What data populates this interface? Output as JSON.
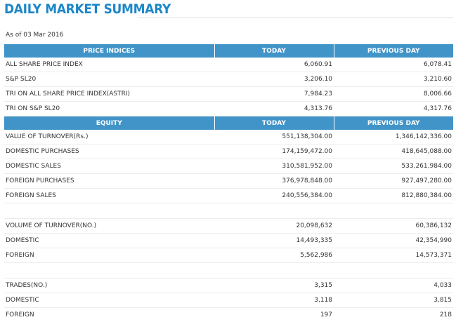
{
  "page": {
    "title": "DAILY MARKET SUMMARY",
    "as_of": "As of 03 Mar 2016"
  },
  "price_indices": {
    "headers": [
      "PRICE INDICES",
      "TODAY",
      "PREVIOUS DAY"
    ],
    "rows": [
      {
        "label": "ALL SHARE PRICE INDEX",
        "today": "6,060.91",
        "previous": "6,078.41"
      },
      {
        "label": "S&P SL20",
        "today": "3,206.10",
        "previous": "3,210.60"
      },
      {
        "label": "TRI ON ALL SHARE PRICE INDEX(ASTRI)",
        "today": "7,984.23",
        "previous": "8,006.66"
      },
      {
        "label": "TRI ON S&P SL20",
        "today": "4,313.76",
        "previous": "4,317.76"
      }
    ]
  },
  "equity": {
    "headers": [
      "EQUITY",
      "TODAY",
      "PREVIOUS DAY"
    ],
    "turnover_rows": [
      {
        "label": "VALUE OF TURNOVER(Rs.)",
        "today": "551,138,304.00",
        "previous": "1,346,142,336.00"
      },
      {
        "label": "DOMESTIC PURCHASES",
        "today": "174,159,472.00",
        "previous": "418,645,088.00"
      },
      {
        "label": "DOMESTIC SALES",
        "today": "310,581,952.00",
        "previous": "533,261,984.00"
      },
      {
        "label": "FOREIGN PURCHASES",
        "today": "376,978,848.00",
        "previous": "927,497,280.00"
      },
      {
        "label": "FOREIGN SALES",
        "today": "240,556,384.00",
        "previous": "812,880,384.00"
      }
    ],
    "volume_rows": [
      {
        "label": "VOLUME OF TURNOVER(NO.)",
        "today": "20,098,632",
        "previous": "60,386,132"
      },
      {
        "label": "DOMESTIC",
        "today": "14,493,335",
        "previous": "42,354,990"
      },
      {
        "label": "FOREIGN",
        "today": "5,562,986",
        "previous": "14,573,371"
      }
    ],
    "trades_rows": [
      {
        "label": "TRADES(NO.)",
        "today": "3,315",
        "previous": "4,033"
      },
      {
        "label": "DOMESTIC",
        "today": "3,118",
        "previous": "3,815"
      },
      {
        "label": "FOREIGN",
        "today": "197",
        "previous": "218"
      }
    ]
  }
}
